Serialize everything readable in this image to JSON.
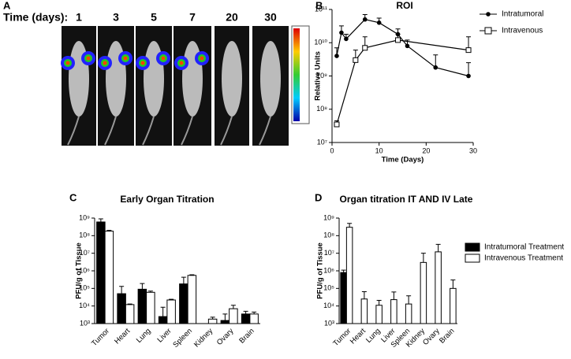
{
  "figure_a": {
    "label": "A",
    "time_label": "Time (days):",
    "days": [
      "1",
      "3",
      "5",
      "7",
      "20",
      "30"
    ]
  },
  "chart_data": [
    {
      "type": "line",
      "panel_label": "B",
      "title": "ROI",
      "x_label": "Time (Days)",
      "y_label": "Relative Units",
      "xlim": [
        0,
        30
      ],
      "xticks": [
        0,
        10,
        20,
        30
      ],
      "ylim": [
        10000000,
        100000000000
      ],
      "log_y": true,
      "yticks": [
        {
          "value": 10000000,
          "label": "10⁷"
        },
        {
          "value": 100000000,
          "label": "10⁸"
        },
        {
          "value": 1000000000,
          "label": "10⁹"
        },
        {
          "value": 10000000000,
          "label": "10¹⁰"
        },
        {
          "value": 100000000000,
          "label": "10¹¹"
        }
      ],
      "legend": "top-right",
      "series": [
        {
          "name": "Intratumoral",
          "color": "#000",
          "marker": "circle",
          "x": [
            1,
            2,
            3,
            7,
            10,
            14,
            16,
            22,
            29
          ],
          "values": [
            4000000000,
            20000000000,
            13000000000,
            50000000000,
            40000000000,
            18000000000,
            8000000000,
            1800000000,
            1000000000
          ],
          "errors": [
            3000000000,
            12000000000,
            5000000000,
            20000000000,
            15000000000,
            8000000000,
            4000000000,
            2500000000,
            1500000000
          ]
        },
        {
          "name": "Intravenous",
          "color": "#000",
          "marker": "square",
          "x": [
            1,
            5,
            7,
            14,
            29
          ],
          "values": [
            35000000,
            3000000000,
            7000000000,
            12000000000,
            6000000000
          ],
          "errors": [
            10000000,
            3000000000,
            8000000000,
            6000000000,
            9000000000
          ]
        }
      ]
    },
    {
      "type": "bar",
      "panel_label": "C",
      "title": "Early Organ Titration",
      "y_label": "PFU/g of Tissue",
      "categories": [
        "Tumor",
        "Heart",
        "Lung",
        "Liver",
        "Spleen",
        "Kidney",
        "Ovary",
        "Brain"
      ],
      "ylim": [
        1000,
        1000000000
      ],
      "log_y": true,
      "yticks": [
        {
          "value": 1000,
          "label": "10³"
        },
        {
          "value": 10000,
          "label": "10⁴"
        },
        {
          "value": 100000,
          "label": "10⁵"
        },
        {
          "value": 1000000,
          "label": "10⁶"
        },
        {
          "value": 10000000,
          "label": "10⁷"
        },
        {
          "value": 100000000,
          "label": "10⁸"
        },
        {
          "value": 1000000000,
          "label": "10⁹"
        }
      ],
      "series": [
        {
          "name": "Intratumoral Treatment",
          "color": "#000",
          "values": [
            600000000,
            50000,
            90000,
            2500,
            180000,
            null,
            1500,
            3500
          ],
          "errors": [
            300000000,
            80000,
            100000,
            6000,
            250000,
            null,
            2000,
            1500
          ]
        },
        {
          "name": "Intravenous Treatment",
          "color": "#fff",
          "values": [
            180000000,
            12000,
            60000,
            22000,
            550000,
            1800,
            7000,
            3500
          ],
          "errors": [
            20000000,
            1000,
            10000,
            2000,
            50000,
            500,
            4000,
            1000
          ]
        }
      ]
    },
    {
      "type": "bar",
      "panel_label": "D",
      "title": "Organ titration IT AND IV Late",
      "y_label": "PFU/g of Tissue",
      "categories": [
        "Tumor",
        "Heart",
        "Lung",
        "Liver",
        "Spleen",
        "Kidney",
        "Ovary",
        "Brain"
      ],
      "ylim": [
        1000,
        1000000000
      ],
      "log_y": true,
      "yticks": [
        {
          "value": 1000,
          "label": "10³"
        },
        {
          "value": 10000,
          "label": "10⁴"
        },
        {
          "value": 100000,
          "label": "10⁵"
        },
        {
          "value": 1000000,
          "label": "10⁶"
        },
        {
          "value": 10000000,
          "label": "10⁷"
        },
        {
          "value": 100000000,
          "label": "10⁸"
        },
        {
          "value": 1000000000,
          "label": "10⁹"
        }
      ],
      "legend": "right",
      "series": [
        {
          "name": "Intratumoral Treatment",
          "color": "#000",
          "values": [
            800000,
            null,
            null,
            null,
            null,
            null,
            null,
            null
          ],
          "errors": [
            300000,
            null,
            null,
            null,
            null,
            null,
            null,
            null
          ]
        },
        {
          "name": "Intravenous Treatment",
          "color": "#fff",
          "values": [
            300000000,
            25000,
            11000,
            23000,
            13000,
            3000000,
            12000000,
            100000
          ],
          "errors": [
            200000000,
            40000,
            10000,
            40000,
            25000,
            7000000,
            20000000,
            200000
          ]
        }
      ]
    }
  ]
}
